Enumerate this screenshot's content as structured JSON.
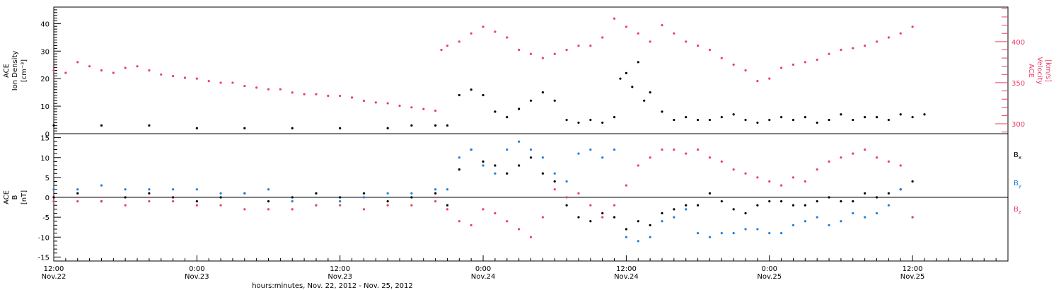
{
  "colors": {
    "black": "#000000",
    "pink": "#e8406a",
    "blue": "#1a80e0"
  },
  "xaxis": {
    "ticks": [
      {
        "time": "12:00",
        "date": "Nov.22",
        "hours": 0
      },
      {
        "time": "0:00",
        "date": "Nov.23",
        "hours": 12
      },
      {
        "time": "12:00",
        "date": "Nov.23",
        "hours": 24
      },
      {
        "time": "0:00",
        "date": "Nov.24",
        "hours": 36
      },
      {
        "time": "12:00",
        "date": "Nov.24",
        "hours": 48
      },
      {
        "time": "0:00",
        "date": "Nov.25",
        "hours": 60
      },
      {
        "time": "12:00",
        "date": "Nov.25",
        "hours": 72
      }
    ],
    "title": "hours:minutes, Nov. 22, 2012 - Nov. 25, 2012",
    "range_hours": [
      0,
      80
    ]
  },
  "chart_data": [
    {
      "type": "scatter",
      "panel": "top",
      "ylabel": [
        "ACE",
        "Ion Density",
        "[cm⁻³]"
      ],
      "ylim": [
        0,
        46
      ],
      "yticks": [
        0,
        10,
        20,
        30,
        40
      ],
      "y2label": [
        "ACE",
        "Velocity",
        "[km/s]"
      ],
      "y2lim": [
        288,
        442
      ],
      "y2ticks": [
        300,
        350,
        400
      ],
      "series": [
        {
          "axis": "left",
          "color": "black",
          "x": [
            0,
            4,
            8,
            12,
            16,
            20,
            24,
            28,
            30,
            32,
            33,
            34,
            35,
            36,
            37,
            38,
            39,
            40,
            41,
            42,
            43,
            44,
            45,
            46,
            47,
            47.5,
            48,
            48.5,
            49,
            49.5,
            50,
            51,
            52,
            53,
            54,
            55,
            56,
            57,
            58,
            59,
            60,
            61,
            62,
            63,
            64,
            65,
            66,
            67,
            68,
            69,
            70,
            71,
            72,
            73
          ],
          "y": [
            3,
            3,
            3,
            2,
            2,
            2,
            2,
            2,
            3,
            3,
            3,
            14,
            16,
            14,
            8,
            6,
            9,
            12,
            15,
            12,
            5,
            4,
            5,
            4,
            6,
            20,
            22,
            17,
            26,
            12,
            15,
            8,
            5,
            6,
            5,
            5,
            6,
            7,
            5,
            4,
            5,
            6,
            5,
            6,
            4,
            5,
            7,
            5,
            6,
            6,
            5,
            7,
            6,
            7
          ]
        },
        {
          "axis": "right",
          "color": "pink",
          "x": [
            0,
            1,
            2,
            3,
            4,
            5,
            6,
            7,
            8,
            9,
            10,
            11,
            12,
            13,
            14,
            15,
            16,
            17,
            18,
            19,
            20,
            21,
            22,
            23,
            24,
            25,
            26,
            27,
            28,
            29,
            30,
            31,
            32,
            32.5,
            33,
            34,
            35,
            36,
            37,
            38,
            39,
            40,
            41,
            42,
            43,
            44,
            45,
            46,
            47,
            48,
            49,
            50,
            51,
            52,
            53,
            54,
            55,
            56,
            57,
            58,
            59,
            60,
            61,
            62,
            63,
            64,
            65,
            66,
            67,
            68,
            69,
            70,
            71,
            72
          ],
          "y": [
            365,
            362,
            375,
            370,
            365,
            362,
            368,
            370,
            365,
            360,
            358,
            356,
            355,
            352,
            350,
            350,
            346,
            344,
            342,
            342,
            338,
            336,
            336,
            334,
            334,
            332,
            328,
            326,
            325,
            322,
            320,
            318,
            316,
            390,
            395,
            400,
            410,
            418,
            412,
            405,
            390,
            385,
            380,
            385,
            390,
            395,
            395,
            405,
            428,
            418,
            410,
            400,
            420,
            410,
            400,
            395,
            390,
            380,
            372,
            365,
            352,
            355,
            368,
            372,
            375,
            378,
            385,
            390,
            392,
            395,
            400,
            405,
            410,
            418
          ]
        }
      ]
    },
    {
      "type": "scatter",
      "panel": "bottom",
      "ylabel": [
        "ACE",
        "B",
        "[nT]"
      ],
      "ylim": [
        -16,
        16
      ],
      "yticks": [
        -15,
        -10,
        -5,
        0,
        5,
        10,
        15
      ],
      "zero_line": true,
      "series": [
        {
          "name": "B_x",
          "color": "black",
          "x": [
            0,
            2,
            4,
            6,
            8,
            10,
            12,
            14,
            16,
            18,
            20,
            22,
            24,
            26,
            28,
            30,
            32,
            33,
            34,
            35,
            36,
            37,
            38,
            39,
            40,
            41,
            42,
            43,
            44,
            45,
            46,
            47,
            48,
            49,
            50,
            51,
            52,
            53,
            54,
            55,
            56,
            57,
            58,
            59,
            60,
            61,
            62,
            63,
            64,
            65,
            66,
            67,
            68,
            69,
            70,
            71,
            72
          ],
          "y": [
            0,
            1,
            -1,
            0,
            1,
            0,
            -1,
            0,
            1,
            -1,
            0,
            1,
            0,
            1,
            -1,
            0,
            1,
            -2,
            7,
            12,
            9,
            8,
            6,
            8,
            10,
            6,
            4,
            -2,
            -5,
            -6,
            -4,
            -5,
            -8,
            -6,
            -7,
            -4,
            -3,
            -2,
            -2,
            1,
            -1,
            -3,
            -4,
            -2,
            -1,
            -1,
            -2,
            -2,
            -1,
            0,
            -1,
            -1,
            1,
            0,
            1,
            2,
            4
          ]
        },
        {
          "name": "B_y",
          "color": "blue",
          "x": [
            0,
            2,
            4,
            6,
            8,
            10,
            12,
            14,
            16,
            18,
            20,
            22,
            24,
            26,
            28,
            30,
            32,
            33,
            34,
            35,
            36,
            37,
            38,
            39,
            40,
            41,
            42,
            43,
            44,
            45,
            46,
            47,
            48,
            49,
            50,
            51,
            52,
            53,
            54,
            55,
            56,
            57,
            58,
            59,
            60,
            61,
            62,
            63,
            64,
            65,
            66,
            67,
            68,
            69,
            70,
            71,
            72
          ],
          "y": [
            2,
            2,
            3,
            2,
            2,
            2,
            2,
            1,
            1,
            2,
            -1,
            -2,
            -1,
            0,
            1,
            1,
            2,
            2,
            10,
            12,
            8,
            6,
            12,
            14,
            12,
            10,
            6,
            4,
            11,
            12,
            10,
            12,
            -10,
            -11,
            -10,
            -6,
            -5,
            -3,
            -9,
            -10,
            -9,
            -9,
            -8,
            -8,
            -9,
            -9,
            -7,
            -6,
            -5,
            -7,
            -6,
            -4,
            -5,
            -4,
            -2,
            2,
            -5
          ]
        },
        {
          "name": "B_z",
          "color": "pink",
          "x": [
            0,
            2,
            4,
            6,
            8,
            10,
            12,
            14,
            16,
            18,
            20,
            22,
            24,
            26,
            28,
            30,
            32,
            33,
            34,
            35,
            36,
            37,
            38,
            39,
            40,
            41,
            42,
            43,
            44,
            45,
            46,
            47,
            48,
            49,
            50,
            51,
            52,
            53,
            54,
            55,
            56,
            57,
            58,
            59,
            60,
            61,
            62,
            63,
            64,
            65,
            66,
            67,
            68,
            69,
            70,
            71,
            72
          ],
          "y": [
            -1,
            -1,
            -1,
            -2,
            -1,
            -1,
            -2,
            -2,
            -3,
            -3,
            -3,
            -2,
            -2,
            -3,
            -2,
            -2,
            -1,
            -3,
            -6,
            -7,
            -3,
            -4,
            -6,
            -8,
            -10,
            -5,
            2,
            0,
            1,
            -2,
            -5,
            -2,
            3,
            8,
            10,
            12,
            12,
            11,
            12,
            10,
            9,
            7,
            6,
            5,
            4,
            3,
            5,
            4,
            7,
            9,
            10,
            11,
            12,
            10,
            9,
            8,
            -5
          ]
        }
      ]
    }
  ],
  "legend": {
    "bx": {
      "base": "B",
      "sub": "x"
    },
    "by": {
      "base": "B",
      "sub": "y"
    },
    "bz": {
      "base": "B",
      "sub": "z"
    }
  }
}
